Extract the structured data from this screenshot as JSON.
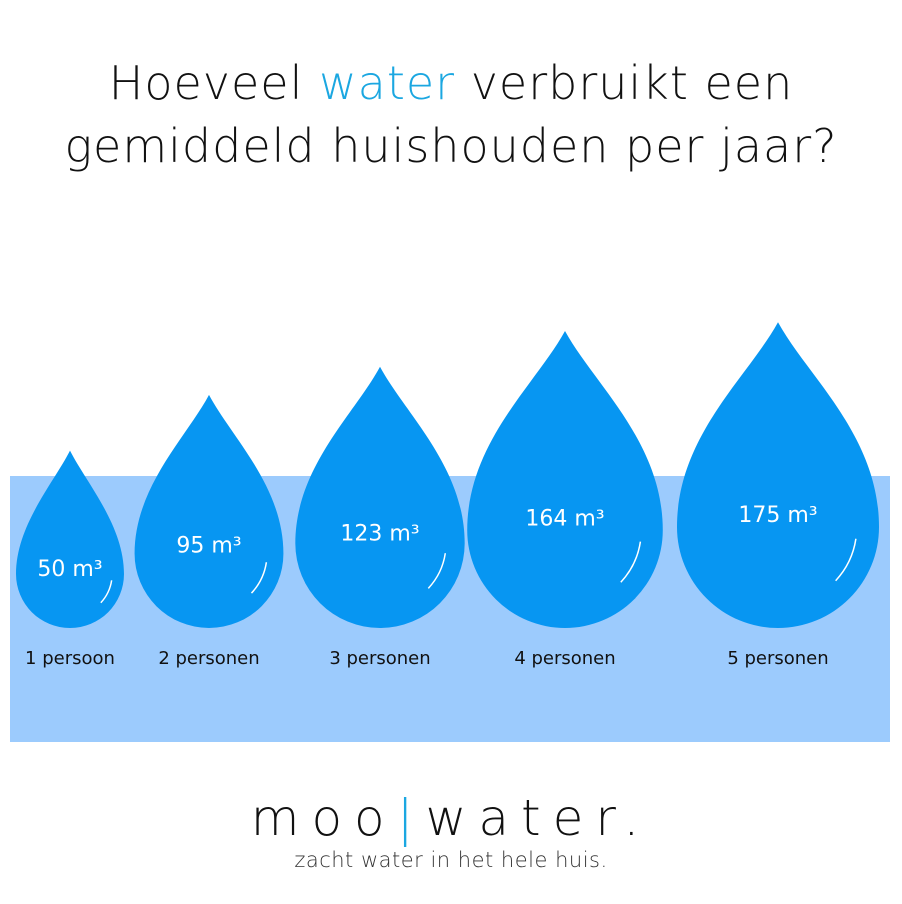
{
  "title": {
    "before": "Hoeveel ",
    "accent": "water",
    "after": " verbruikt een gemiddeld huishouden per jaar?"
  },
  "colors": {
    "accent": "#1ba7e1",
    "drop": "#0796f2",
    "band": "#9ccbfd",
    "text": "#111111"
  },
  "chart_data": {
    "type": "pictorial-bar",
    "categories": [
      "1 persoon",
      "2 personen",
      "3 personen",
      "4 personen",
      "5 personen"
    ],
    "values": [
      50,
      95,
      123,
      164,
      175
    ],
    "unit": "m³",
    "value_labels": [
      "50 m³",
      "95 m³",
      "123 m³",
      "164 m³",
      "175 m³"
    ],
    "mark": "water-drop"
  },
  "logo": {
    "pre": "moo",
    "bar": "|",
    "post": "water.",
    "tagline": "zacht water in het hele huis."
  }
}
